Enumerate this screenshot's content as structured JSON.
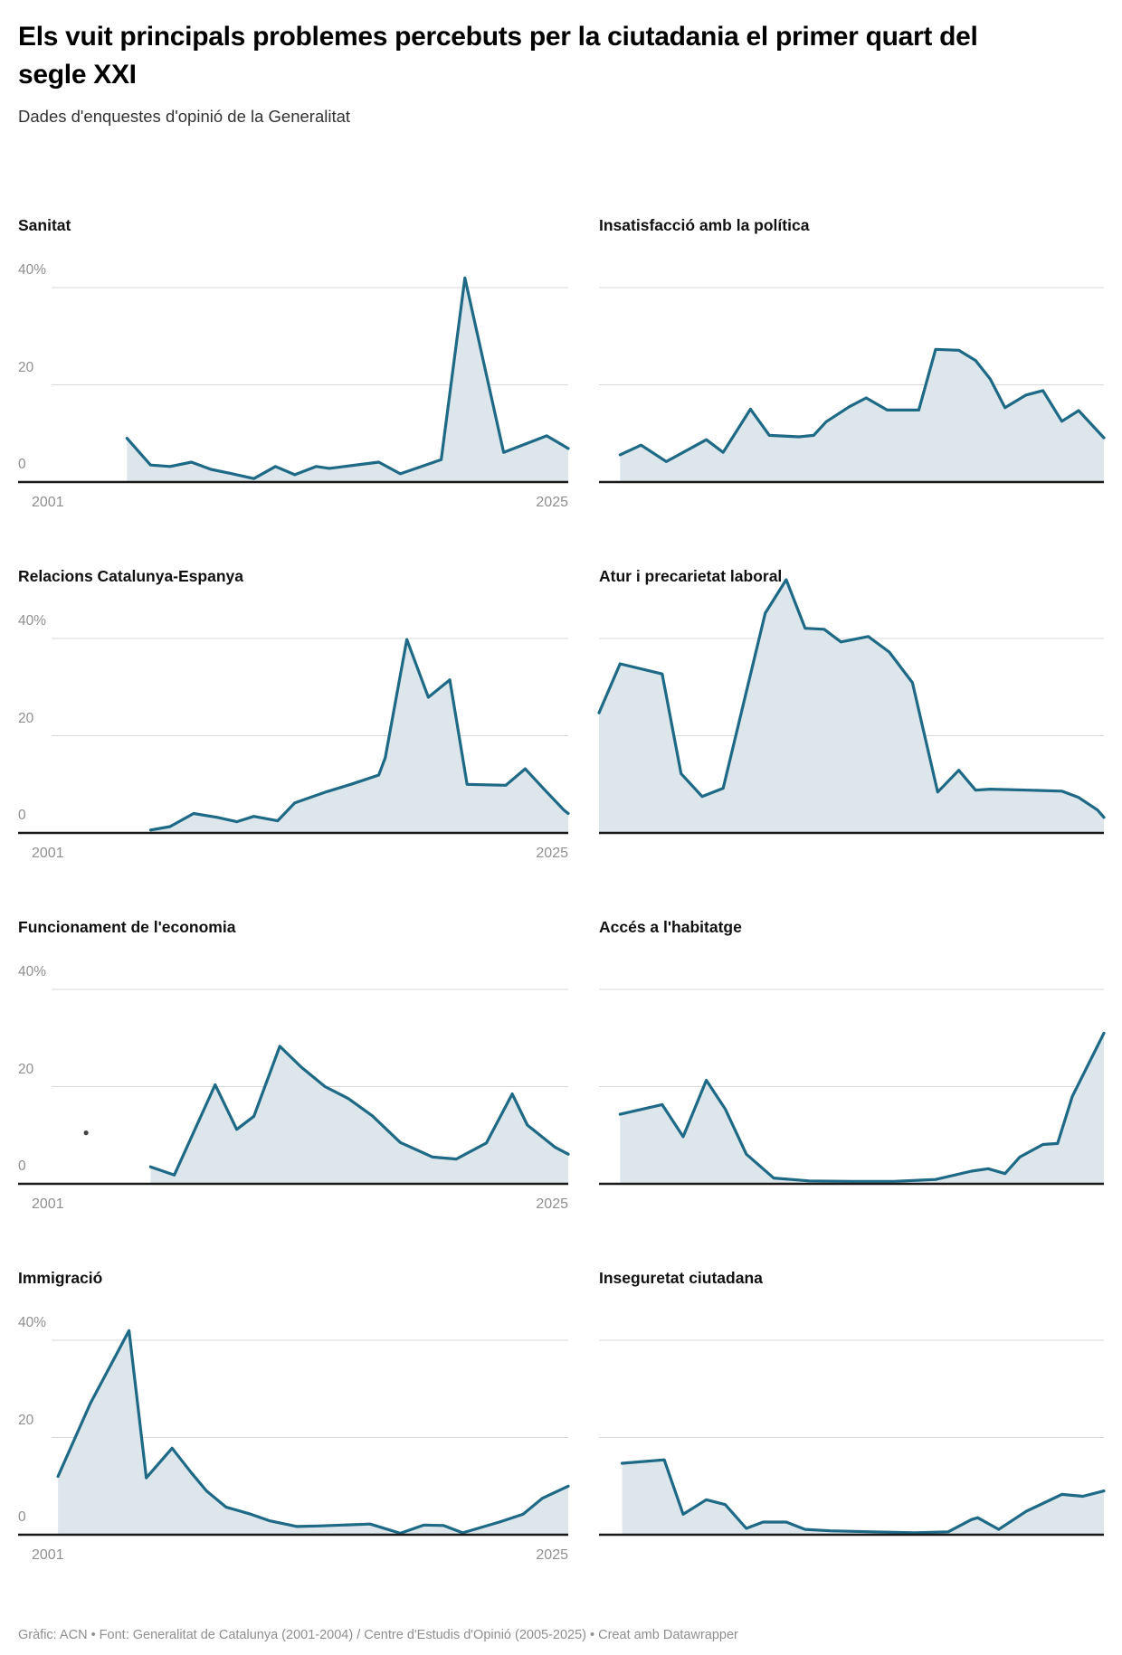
{
  "header": {
    "title": "Els vuit principals problemes percebuts per la ciutadania el primer quart del segle XXI",
    "subtitle": "Dades d'enquestes d'opinió de la Generalitat"
  },
  "axis": {
    "y_top_label": "40%",
    "y_mid_label": "20",
    "y_zero_label": "0",
    "x_first": "2001",
    "x_last": "2025"
  },
  "colors": {
    "line": "#1d6986",
    "area_fill": "#dce6eb",
    "gridline": "#d8d8d8",
    "axis_line": "#191919",
    "tick_label": "#8f8f8f"
  },
  "footer": {
    "credit": "Gràfic: ACN • Font: Generalitat de Catalunya (2001-2004) / Centre d'Estudis d'Opinió (2005-2025) • Creat amb Datawrapper"
  },
  "chart_data": {
    "type": "area",
    "layout": "small-multiples 2 columns x 4 rows",
    "x_min": 2001,
    "x_max": 2025,
    "y_unit": "%",
    "y_gridlines": [
      0,
      20,
      40
    ],
    "ylim": [
      0,
      53
    ],
    "legend": "none",
    "charts": [
      {
        "title": "Sanitat",
        "column": "left",
        "points": [
          [
            2004.5,
            9
          ],
          [
            2005.6,
            3.5
          ],
          [
            2006.5,
            3.2
          ],
          [
            2007.5,
            4.1
          ],
          [
            2008.4,
            2.6
          ],
          [
            2009.4,
            1.7
          ],
          [
            2010.4,
            0.7
          ],
          [
            2011.4,
            3.2
          ],
          [
            2012.3,
            1.5
          ],
          [
            2013.3,
            3.2
          ],
          [
            2013.9,
            2.8
          ],
          [
            2014.6,
            3.2
          ],
          [
            2016.2,
            4.1
          ],
          [
            2017.2,
            1.7
          ],
          [
            2019.1,
            4.6
          ],
          [
            2020.2,
            42
          ],
          [
            2022,
            6.1
          ],
          [
            2024,
            9.5
          ],
          [
            2025,
            6.9
          ]
        ]
      },
      {
        "title": "Insatisfacció amb la política",
        "column": "right",
        "points": [
          [
            2002,
            5.6
          ],
          [
            2003,
            7.6
          ],
          [
            2004.2,
            4.2
          ],
          [
            2006.1,
            8.7
          ],
          [
            2006.9,
            6.1
          ],
          [
            2008.2,
            15
          ],
          [
            2009.1,
            9.6
          ],
          [
            2010.5,
            9.3
          ],
          [
            2011.2,
            9.6
          ],
          [
            2011.8,
            12.4
          ],
          [
            2012.9,
            15.5
          ],
          [
            2013.7,
            17.3
          ],
          [
            2014.7,
            14.8
          ],
          [
            2016.2,
            14.8
          ],
          [
            2017,
            27.3
          ],
          [
            2018.1,
            27.1
          ],
          [
            2018.9,
            25
          ],
          [
            2019.6,
            21.2
          ],
          [
            2020.3,
            15.3
          ],
          [
            2021.3,
            17.9
          ],
          [
            2022.1,
            18.8
          ],
          [
            2023,
            12.5
          ],
          [
            2023.8,
            14.7
          ],
          [
            2025,
            9.1
          ]
        ]
      },
      {
        "title": "Relacions Catalunya-Espanya",
        "column": "left",
        "points": [
          [
            2005.6,
            0.6
          ],
          [
            2006.5,
            1.3
          ],
          [
            2007.6,
            4
          ],
          [
            2008.7,
            3.2
          ],
          [
            2009.6,
            2.3
          ],
          [
            2010.4,
            3.4
          ],
          [
            2011.5,
            2.5
          ],
          [
            2012.3,
            6.2
          ],
          [
            2013.8,
            8.5
          ],
          [
            2014.9,
            10
          ],
          [
            2016.2,
            11.9
          ],
          [
            2016.5,
            15.5
          ],
          [
            2017.5,
            39.8
          ],
          [
            2018.5,
            27.9
          ],
          [
            2019.5,
            31.5
          ],
          [
            2020.3,
            10
          ],
          [
            2022.1,
            9.8
          ],
          [
            2023,
            13.2
          ],
          [
            2023.9,
            8.9
          ],
          [
            2024.8,
            4.7
          ],
          [
            2025,
            4
          ]
        ]
      },
      {
        "title": "Atur i precarietat laboral",
        "column": "right",
        "points": [
          [
            2001,
            24.7
          ],
          [
            2002,
            34.8
          ],
          [
            2004,
            32.7
          ],
          [
            2004.9,
            12.2
          ],
          [
            2005.9,
            7.5
          ],
          [
            2006.9,
            9.2
          ],
          [
            2008.9,
            45.2
          ],
          [
            2009.9,
            52.1
          ],
          [
            2010.8,
            42.1
          ],
          [
            2011.7,
            41.9
          ],
          [
            2012.5,
            39.3
          ],
          [
            2013.8,
            40.4
          ],
          [
            2014.8,
            37.2
          ],
          [
            2015.9,
            30.9
          ],
          [
            2017.1,
            8.4
          ],
          [
            2018.1,
            12.9
          ],
          [
            2018.9,
            8.8
          ],
          [
            2019.6,
            9
          ],
          [
            2021.4,
            8.8
          ],
          [
            2023,
            8.6
          ],
          [
            2023.8,
            7.3
          ],
          [
            2024.7,
            4.7
          ],
          [
            2025,
            3.2
          ]
        ]
      },
      {
        "title": "Funcionament de l'economia",
        "column": "left",
        "dot": [
          2002.6,
          10.5
        ],
        "points": [
          [
            2005.6,
            3.5
          ],
          [
            2006.7,
            1.8
          ],
          [
            2008.6,
            20.4
          ],
          [
            2009.6,
            11.2
          ],
          [
            2010.4,
            13.9
          ],
          [
            2011.6,
            28.3
          ],
          [
            2012.6,
            24
          ],
          [
            2013.7,
            20
          ],
          [
            2014.8,
            17.5
          ],
          [
            2015.9,
            14
          ],
          [
            2017.2,
            8.5
          ],
          [
            2018.7,
            5.5
          ],
          [
            2019.8,
            5.1
          ],
          [
            2021.2,
            8.4
          ],
          [
            2022.4,
            18.5
          ],
          [
            2023.1,
            12.1
          ],
          [
            2024.4,
            7.5
          ],
          [
            2025,
            6.1
          ]
        ]
      },
      {
        "title": "Accés a l'habitatge",
        "column": "right",
        "points": [
          [
            2002,
            14.3
          ],
          [
            2004,
            16.3
          ],
          [
            2005,
            9.7
          ],
          [
            2006.1,
            21.3
          ],
          [
            2007,
            15.4
          ],
          [
            2008,
            6.1
          ],
          [
            2009.3,
            1.2
          ],
          [
            2011,
            0.6
          ],
          [
            2013,
            0.5
          ],
          [
            2015,
            0.5
          ],
          [
            2017,
            0.9
          ],
          [
            2018.7,
            2.6
          ],
          [
            2019.5,
            3.1
          ],
          [
            2020.3,
            2.1
          ],
          [
            2021,
            5.5
          ],
          [
            2022.1,
            8.1
          ],
          [
            2022.8,
            8.3
          ],
          [
            2023.5,
            18
          ],
          [
            2025,
            31
          ]
        ]
      },
      {
        "title": "Immigració",
        "column": "left",
        "points": [
          [
            2001.3,
            12
          ],
          [
            2002.8,
            27
          ],
          [
            2004.6,
            42
          ],
          [
            2005.4,
            11.7
          ],
          [
            2006.6,
            17.8
          ],
          [
            2007.5,
            12.7
          ],
          [
            2008.2,
            9
          ],
          [
            2009.1,
            5.7
          ],
          [
            2010.2,
            4.3
          ],
          [
            2011.1,
            2.9
          ],
          [
            2012.4,
            1.7
          ],
          [
            2013.4,
            1.8
          ],
          [
            2015.8,
            2.2
          ],
          [
            2017.2,
            0.3
          ],
          [
            2018.3,
            2
          ],
          [
            2019.2,
            1.9
          ],
          [
            2020.1,
            0.4
          ],
          [
            2021.8,
            2.6
          ],
          [
            2022.9,
            4.2
          ],
          [
            2023.8,
            7.5
          ],
          [
            2025,
            10
          ]
        ]
      },
      {
        "title": "Inseguretat ciutadana",
        "column": "right",
        "points": [
          [
            2002.1,
            14.7
          ],
          [
            2004.1,
            15.4
          ],
          [
            2005,
            4.2
          ],
          [
            2006.1,
            7.2
          ],
          [
            2007,
            6.2
          ],
          [
            2008,
            1.3
          ],
          [
            2008.8,
            2.6
          ],
          [
            2009.9,
            2.6
          ],
          [
            2010.8,
            1.1
          ],
          [
            2012,
            0.8
          ],
          [
            2014,
            0.6
          ],
          [
            2016,
            0.4
          ],
          [
            2017.6,
            0.6
          ],
          [
            2018.7,
            3.1
          ],
          [
            2019,
            3.5
          ],
          [
            2020,
            1.1
          ],
          [
            2021.3,
            4.8
          ],
          [
            2023,
            8.3
          ],
          [
            2024,
            7.9
          ],
          [
            2025,
            9
          ]
        ]
      }
    ]
  }
}
